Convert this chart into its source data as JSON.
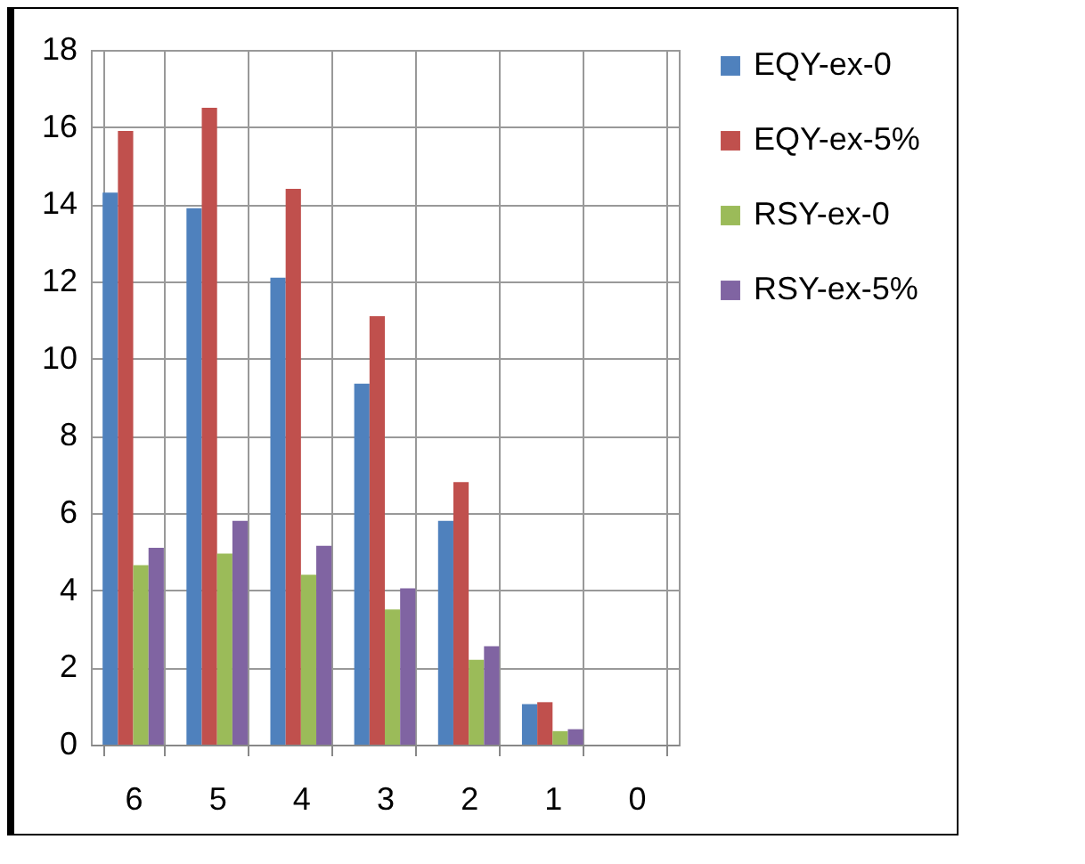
{
  "chart_data": {
    "type": "bar",
    "categories": [
      "6",
      "5",
      "4",
      "3",
      "2",
      "1",
      "0"
    ],
    "series": [
      {
        "name": "EQY-ex-0",
        "color": "#4f81bd",
        "values": [
          14.3,
          13.9,
          12.1,
          9.35,
          5.8,
          1.05,
          0
        ]
      },
      {
        "name": "EQY-ex-5%",
        "color": "#c0504d",
        "values": [
          15.9,
          16.5,
          14.4,
          11.1,
          6.8,
          1.1,
          0
        ]
      },
      {
        "name": "RSY-ex-0",
        "color": "#9bbb59",
        "values": [
          4.65,
          4.95,
          4.4,
          3.5,
          2.2,
          0.35,
          0
        ]
      },
      {
        "name": "RSY-ex-5%",
        "color": "#8064a2",
        "values": [
          5.1,
          5.8,
          5.15,
          4.05,
          2.55,
          0.4,
          0
        ]
      }
    ],
    "ylim": [
      0,
      18
    ],
    "yticks": [
      0,
      2,
      4,
      6,
      8,
      10,
      12,
      14,
      16,
      18
    ],
    "grid": true,
    "legend": "right"
  }
}
